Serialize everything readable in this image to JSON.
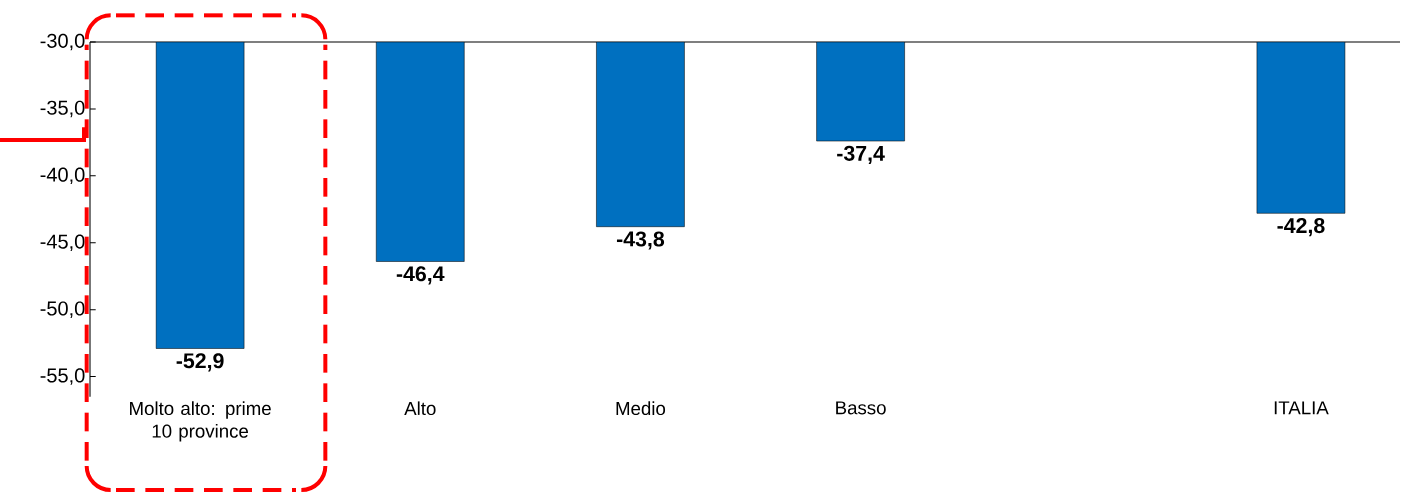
{
  "chart_data": {
    "type": "bar",
    "categories": [
      "Molto alto: prime 10 province",
      "Alto",
      "Medio",
      "Basso",
      null,
      "ITALIA"
    ],
    "values": [
      -52.9,
      -46.4,
      -43.8,
      -37.4,
      null,
      -42.8
    ],
    "value_labels": [
      "-52,9",
      "-46,4",
      "-43,8",
      "-37,4",
      null,
      "-42,8"
    ],
    "color": "#0070c0",
    "ylim": [
      -56.5,
      -30
    ],
    "yticks": [
      {
        "value": -55,
        "label": "-55,0"
      },
      {
        "value": -50,
        "label": "-50,0"
      },
      {
        "value": -45,
        "label": "-45,0"
      },
      {
        "value": -40,
        "label": "-40,0"
      },
      {
        "value": -35,
        "label": "-35,0"
      },
      {
        "value": -30,
        "label": "-30,0"
      }
    ],
    "grid": false
  }
}
